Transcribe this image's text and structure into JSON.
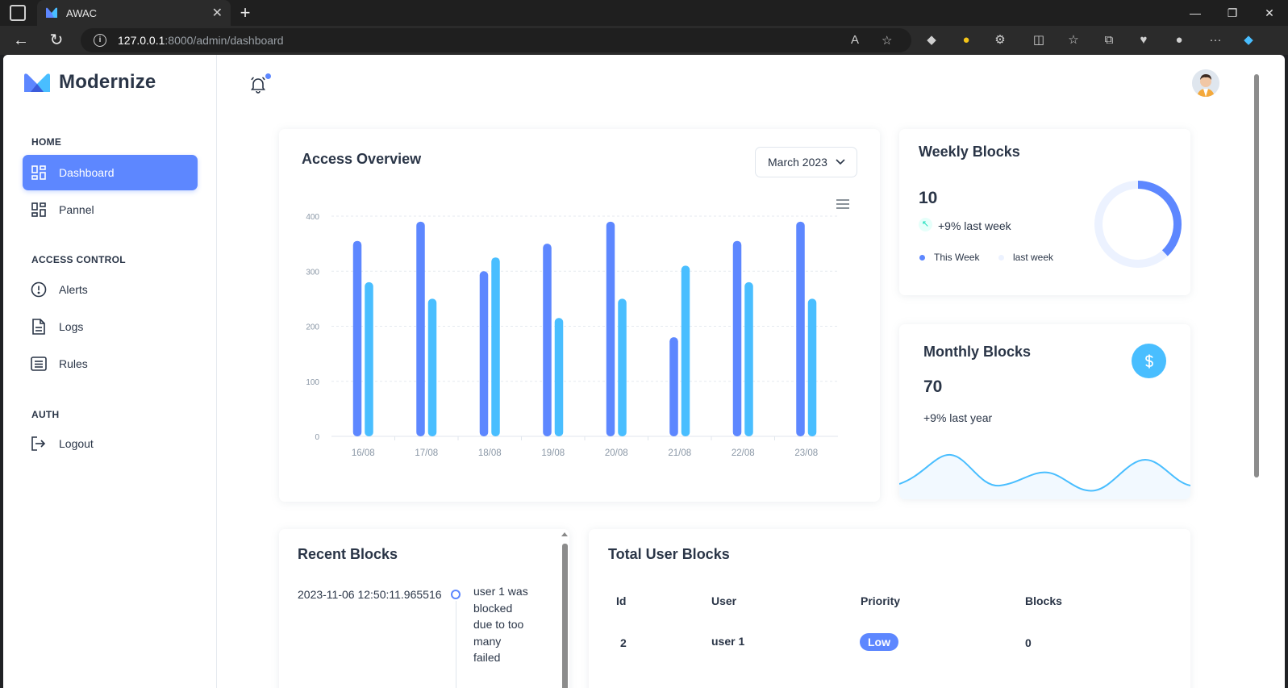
{
  "browser": {
    "tab_title": "AWAC",
    "url_host": "127.0.0.1",
    "url_path": ":8000/admin/dashboard"
  },
  "sidebar": {
    "brand": "Modernize",
    "sections": [
      {
        "caption": "HOME",
        "items": [
          {
            "label": "Dashboard",
            "icon": "layout-dashboard-icon",
            "active": true
          },
          {
            "label": "Pannel",
            "icon": "layout-grid-icon",
            "active": false
          }
        ]
      },
      {
        "caption": "ACCESS CONTROL",
        "items": [
          {
            "label": "Alerts",
            "icon": "alert-circle-icon"
          },
          {
            "label": "Logs",
            "icon": "file-text-icon"
          },
          {
            "label": "Rules",
            "icon": "list-icon"
          }
        ]
      },
      {
        "caption": "AUTH",
        "items": [
          {
            "label": "Logout",
            "icon": "logout-icon"
          }
        ]
      }
    ]
  },
  "access_overview": {
    "title": "Access Overview",
    "month_select": "March 2023"
  },
  "chart_data": {
    "type": "bar",
    "categories": [
      "16/08",
      "17/08",
      "18/08",
      "19/08",
      "20/08",
      "21/08",
      "22/08",
      "23/08"
    ],
    "series": [
      {
        "values": [
          355,
          390,
          300,
          350,
          390,
          180,
          355,
          390
        ],
        "color": "#5d87ff"
      },
      {
        "values": [
          280,
          250,
          325,
          215,
          250,
          310,
          280,
          250
        ],
        "color": "#49beff"
      }
    ],
    "ylim": [
      0,
      400
    ],
    "yticks": [
      "0",
      "100",
      "200",
      "300",
      "400"
    ],
    "grid": true
  },
  "weekly_blocks": {
    "title": "Weekly Blocks",
    "value": "10",
    "change": "+9% last week",
    "legend": [
      "This Week",
      "last week"
    ],
    "donut": {
      "this_week": 38,
      "last_week": 62
    }
  },
  "monthly_blocks": {
    "title": "Monthly Blocks",
    "value": "70",
    "change": "+9% last year",
    "icon": "dollar-icon"
  },
  "recent_blocks": {
    "title": "Recent Blocks",
    "items": [
      {
        "date": "2023-11-06 12:50:11.965516",
        "text": "user 1 was blocked due to too many failed"
      }
    ]
  },
  "total_user_blocks": {
    "title": "Total User Blocks",
    "columns": [
      "Id",
      "User",
      "Priority",
      "Blocks"
    ],
    "rows": [
      {
        "id": "2",
        "user": "user 1",
        "priority": "Low",
        "blocks": "0"
      }
    ]
  },
  "colors": {
    "primary": "#5d87ff",
    "secondary": "#49beff"
  }
}
